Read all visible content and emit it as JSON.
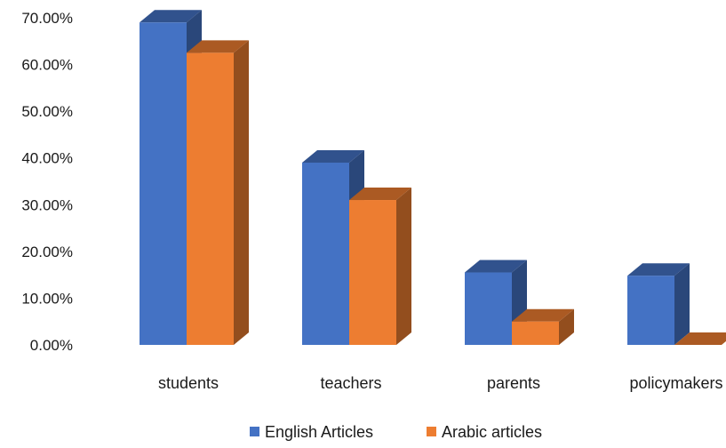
{
  "chart_data": {
    "type": "bar",
    "title": "",
    "xlabel": "",
    "ylabel": "",
    "categories": [
      "students",
      "teachers",
      "parents",
      "policymakers"
    ],
    "series": [
      {
        "name": "English Articles",
        "values": [
          69.0,
          39.0,
          15.5,
          14.8
        ],
        "color": "#4472c4"
      },
      {
        "name": "Arabic articles",
        "values": [
          62.5,
          31.0,
          5.0,
          0.0
        ],
        "color": "#ed7d31"
      }
    ],
    "ylim": [
      0,
      70
    ],
    "yticks": [
      "0.00%",
      "10.00%",
      "20.00%",
      "30.00%",
      "40.00%",
      "50.00%",
      "60.00%",
      "70.00%"
    ],
    "grid": false,
    "legend": "bottom",
    "style": "3d-clustered-column"
  }
}
